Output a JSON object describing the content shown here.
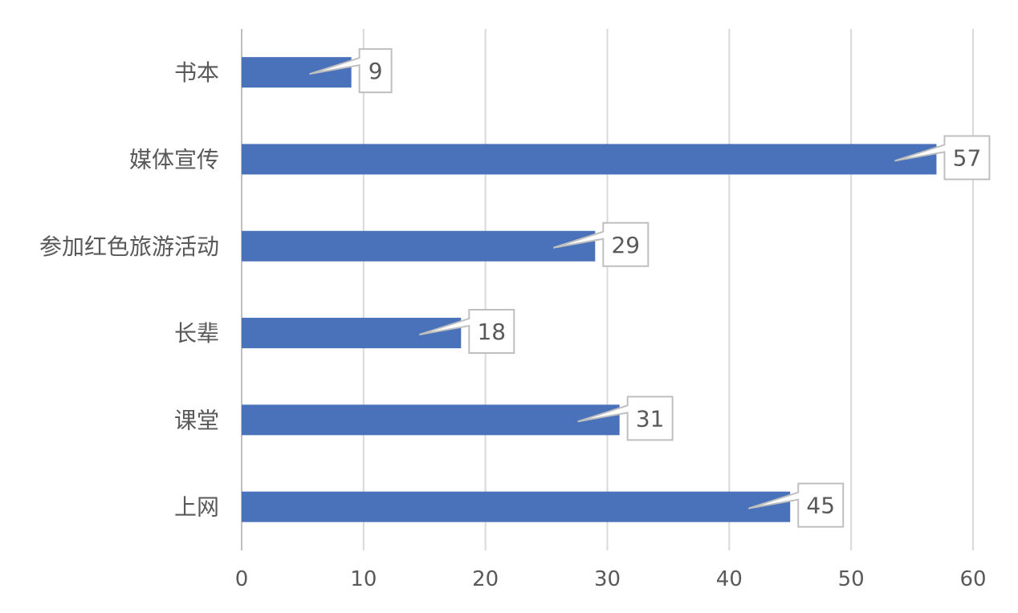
{
  "chart_data": {
    "type": "bar",
    "orientation": "horizontal",
    "categories": [
      "书本",
      "媒体宣传",
      "参加红色旅游活动",
      "长辈",
      "课堂",
      "上网"
    ],
    "values": [
      9,
      57,
      29,
      18,
      31,
      45
    ],
    "data_labels": [
      "9",
      "57",
      "29",
      "18",
      "31",
      "45"
    ],
    "x_ticks": [
      "0",
      "10",
      "20",
      "30",
      "40",
      "50",
      "60"
    ],
    "xlim": [
      0,
      60
    ],
    "grid": "vertical",
    "legend": "none",
    "title": "",
    "xlabel": "",
    "ylabel": "",
    "colors": {
      "bar": "#4a72bb",
      "grid": "#d9d9d9",
      "axis": "#bfbfbf",
      "label_text": "#595959",
      "callout_border": "#bfbfbf"
    }
  }
}
